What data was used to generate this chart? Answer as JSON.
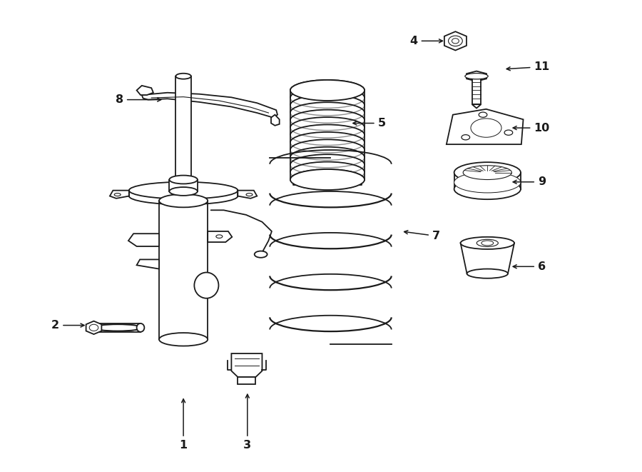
{
  "bg_color": "#ffffff",
  "line_color": "#1a1a1a",
  "lw": 1.3,
  "label_configs": [
    [
      1,
      0.285,
      0.055,
      0.285,
      0.16
    ],
    [
      2,
      0.085,
      0.31,
      0.135,
      0.31
    ],
    [
      3,
      0.385,
      0.055,
      0.385,
      0.17
    ],
    [
      4,
      0.645,
      0.915,
      0.695,
      0.915
    ],
    [
      5,
      0.595,
      0.74,
      0.545,
      0.74
    ],
    [
      6,
      0.845,
      0.435,
      0.795,
      0.435
    ],
    [
      7,
      0.68,
      0.5,
      0.625,
      0.51
    ],
    [
      8,
      0.185,
      0.79,
      0.255,
      0.79
    ],
    [
      9,
      0.845,
      0.615,
      0.795,
      0.615
    ],
    [
      10,
      0.845,
      0.73,
      0.795,
      0.73
    ],
    [
      11,
      0.845,
      0.86,
      0.785,
      0.855
    ]
  ]
}
